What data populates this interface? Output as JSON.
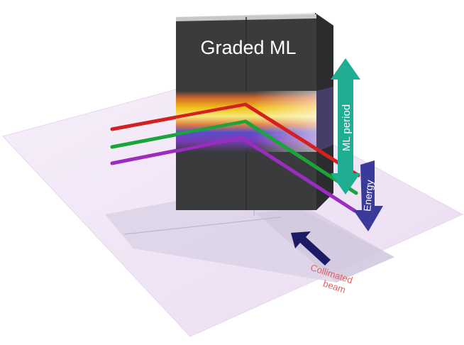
{
  "title": "Graded ML",
  "labels": {
    "ml_period": "ML period",
    "energy": "Energy",
    "collimated_beam_line1": "Collimated",
    "collimated_beam_line2": "beam"
  },
  "beams": [
    {
      "name": "red",
      "color": "#d42020"
    },
    {
      "name": "green",
      "color": "#1aa53a"
    },
    {
      "name": "purple",
      "color": "#9a2cc0"
    }
  ],
  "colors": {
    "floor": "#f1e6f6",
    "block_front": "#3a3b3d",
    "block_side": "#2a2c2e",
    "block_top": "#e6e6e4",
    "ml_period_arrow": "#1fae92",
    "energy_arrow": "#3a3a9a",
    "collimated_arrow": "#1c1c66",
    "collimated_text": "#e06060"
  }
}
